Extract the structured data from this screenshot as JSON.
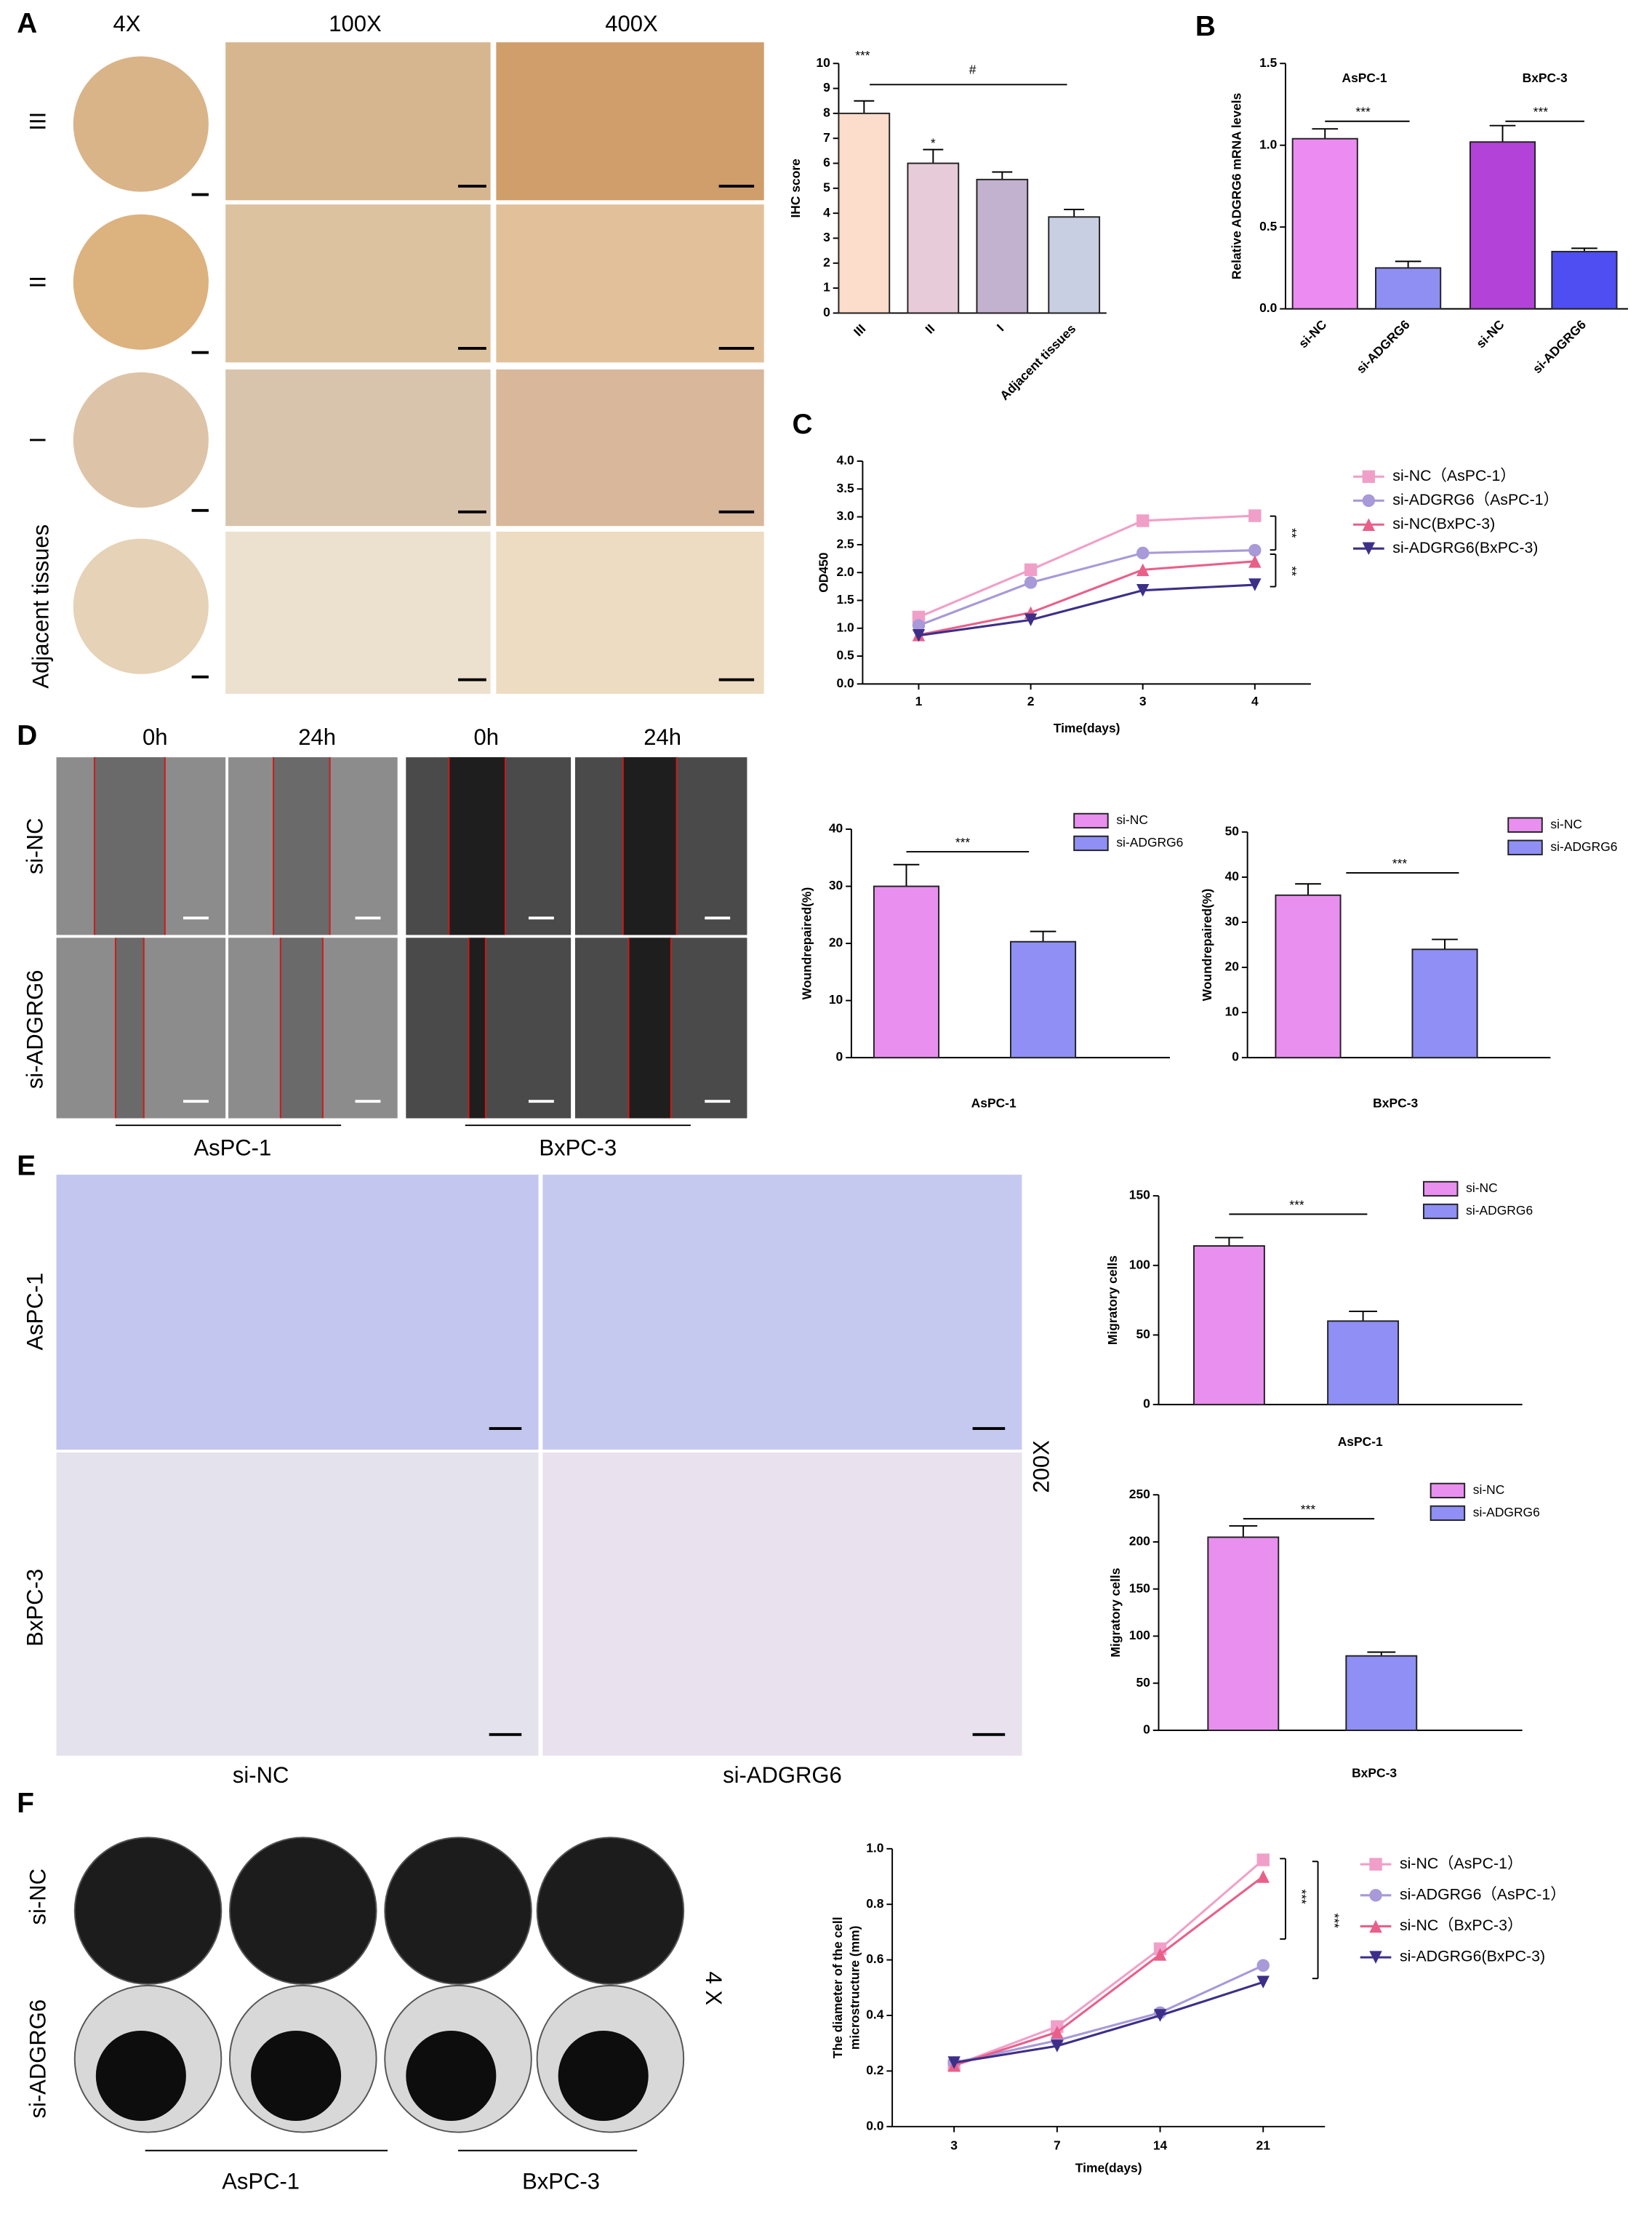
{
  "figure": {
    "panel_labels": [
      "A",
      "B",
      "C",
      "D",
      "E",
      "F"
    ],
    "magnifications_A": [
      "4X",
      "100X",
      "400X"
    ],
    "grades_A": [
      "III",
      "II",
      "I",
      "Adjacent tissues"
    ],
    "times_D": [
      "0h",
      "24h",
      "0h",
      "24h"
    ],
    "rows_D": [
      "si-NC",
      "si-ADGRG6"
    ],
    "cells_D": [
      "AsPC-1",
      "BxPC-3"
    ],
    "rows_E": [
      "AsPC-1",
      "BxPC-3"
    ],
    "columns_E": [
      "si-NC",
      "si-ADGRG6"
    ],
    "magnification_E": "200X",
    "rows_F": [
      "si-NC",
      "si-ADGRG6"
    ],
    "cells_F": [
      "AsPC-1",
      "BxPC-3"
    ],
    "magnification_F": "4 X"
  },
  "chart_data": [
    {
      "type": "bar",
      "ylabel": "IHC score",
      "categories": [
        "III",
        "II",
        "I",
        "Adjacent tissues"
      ],
      "values": [
        8.0,
        6.0,
        5.35,
        3.85
      ],
      "errors": [
        0.5,
        0.55,
        0.3,
        0.3
      ],
      "colors": [
        "#fcdccb",
        "#e8cbd9",
        "#c3b1d0",
        "#c9cfe3"
      ],
      "ylim": [
        0,
        10
      ],
      "yticks": [
        0,
        1,
        2,
        3,
        4,
        5,
        6,
        7,
        8,
        9,
        10
      ],
      "annotations": [
        "***",
        "*",
        "#"
      ]
    },
    {
      "type": "bar",
      "ylabel": "Relative ADGRG6 mRNA levels",
      "categories": [
        "si-NC",
        "si-ADGRG6",
        "si-NC",
        "si-ADGRG6"
      ],
      "groups": [
        "AsPC-1",
        "BxPC-3"
      ],
      "values": [
        1.04,
        0.25,
        1.02,
        0.35
      ],
      "errors": [
        0.06,
        0.04,
        0.1,
        0.02
      ],
      "colors": [
        "#ec8cf2",
        "#8e8ef3",
        "#b343d8",
        "#4e4ef2"
      ],
      "ylim": [
        0,
        1.5
      ],
      "yticks": [
        {
          "value": 0,
          "label": "0.0"
        },
        0.5,
        {
          "value": 1,
          "label": "1.0"
        },
        1.5
      ],
      "annotations": [
        "***",
        "***"
      ]
    },
    {
      "type": "line",
      "xlabel": "Time(days)",
      "ylabel": "OD450",
      "x": [
        1,
        2,
        3,
        4
      ],
      "xlim": [
        0.5,
        4.5
      ],
      "xticks": [
        1,
        2,
        3,
        4
      ],
      "ylim": [
        0,
        4
      ],
      "yticks": [
        {
          "value": 0,
          "label": "0.0"
        },
        0.5,
        {
          "value": 1,
          "label": "1.0"
        },
        1.5,
        {
          "value": 2,
          "label": "2.0"
        },
        2.5,
        {
          "value": 3,
          "label": "3.0"
        },
        3.5,
        {
          "value": 4,
          "label": "4.0"
        }
      ],
      "series": [
        {
          "name": "si-NC（AsPC-1）",
          "color": "#f0a0c8",
          "marker": "square",
          "values": [
            1.2,
            2.05,
            2.93,
            3.02
          ]
        },
        {
          "name": "si-ADGRG6（AsPC-1）",
          "color": "#a899d8",
          "marker": "circle",
          "values": [
            1.05,
            1.82,
            2.35,
            2.4
          ]
        },
        {
          "name": "si-NC(BxPC-3)",
          "color": "#e8608a",
          "marker": "triangle",
          "values": [
            0.88,
            1.28,
            2.05,
            2.2
          ]
        },
        {
          "name": "si-ADGRG6(BxPC-3)",
          "color": "#3d2f88",
          "marker": "triangle-down",
          "values": [
            0.87,
            1.15,
            1.68,
            1.78
          ]
        }
      ],
      "annotations": [
        "**",
        "**"
      ]
    },
    {
      "type": "bar",
      "ylabel": "Woundrepaired(%)",
      "xlabel": "AsPC-1",
      "categories": [
        "si-NC",
        "si-ADGRG6"
      ],
      "values": [
        30,
        20.3
      ],
      "errors": [
        3.8,
        1.8
      ],
      "colors": [
        "#e98ff0",
        "#8f8ff5"
      ],
      "ylim": [
        0,
        40
      ],
      "yticks": [
        0,
        10,
        20,
        30,
        40
      ],
      "annotations": [
        "***"
      ]
    },
    {
      "type": "bar",
      "ylabel": "Woundrepaired(%)",
      "xlabel": "BxPC-3",
      "categories": [
        "si-NC",
        "si-ADGRG6"
      ],
      "values": [
        36,
        24
      ],
      "errors": [
        2.5,
        2.2
      ],
      "colors": [
        "#e98ff0",
        "#8f8ff5"
      ],
      "ylim": [
        0,
        50
      ],
      "yticks": [
        0,
        10,
        20,
        30,
        40,
        50
      ],
      "annotations": [
        "***"
      ]
    },
    {
      "type": "bar",
      "ylabel": "Migratory cells",
      "xlabel": "AsPC-1",
      "categories": [
        "si-NC",
        "si-ADGRG6"
      ],
      "values": [
        114,
        60
      ],
      "errors": [
        6,
        7
      ],
      "colors": [
        "#e98ff0",
        "#8f8ff5"
      ],
      "ylim": [
        0,
        150
      ],
      "yticks": [
        0,
        50,
        100,
        150
      ],
      "annotations": [
        "***"
      ]
    },
    {
      "type": "bar",
      "ylabel": "Migratory cells",
      "xlabel": "BxPC-3",
      "categories": [
        "si-NC",
        "si-ADGRG6"
      ],
      "values": [
        205,
        79
      ],
      "errors": [
        12,
        4
      ],
      "colors": [
        "#e98ff0",
        "#8f8ff5"
      ],
      "ylim": [
        0,
        250
      ],
      "yticks": [
        0,
        50,
        100,
        150,
        200,
        250
      ],
      "annotations": [
        "***"
      ]
    },
    {
      "type": "line",
      "xlabel": "Time(days)",
      "ylabel": [
        "The diameter of the cell",
        "microstructure (mm)"
      ],
      "categories": [
        "3",
        "7",
        "14",
        "21"
      ],
      "ylim": [
        0,
        1
      ],
      "yticks": [
        {
          "value": 0,
          "label": "0.0"
        },
        0.2,
        0.4,
        0.6,
        0.8,
        {
          "value": 1,
          "label": "1.0"
        }
      ],
      "series": [
        {
          "name": "si-NC（AsPC-1）",
          "color": "#f0a0c8",
          "marker": "square",
          "values": [
            0.22,
            0.36,
            0.64,
            0.96
          ]
        },
        {
          "name": "si-ADGRG6（AsPC-1）",
          "color": "#a899d8",
          "marker": "circle",
          "values": [
            0.23,
            0.31,
            0.41,
            0.58
          ]
        },
        {
          "name": "si-NC（BxPC-3）",
          "color": "#e8608a",
          "marker": "triangle",
          "values": [
            0.22,
            0.34,
            0.62,
            0.9
          ]
        },
        {
          "name": "si-ADGRG6(BxPC-3)",
          "color": "#3d2f88",
          "marker": "triangle-down",
          "values": [
            0.23,
            0.29,
            0.4,
            0.52
          ]
        }
      ],
      "annotations": [
        "***",
        "***"
      ]
    }
  ]
}
